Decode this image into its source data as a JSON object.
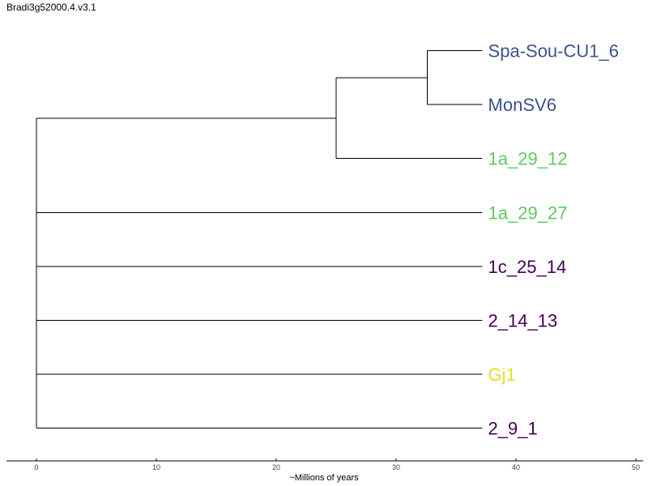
{
  "title": "Bradi3g52000.4.v3.1",
  "axis": {
    "label": "~Millions of years",
    "range": [
      0,
      50
    ],
    "ticks": [
      "0",
      "10",
      "20",
      "30",
      "40",
      "50"
    ]
  },
  "colors": {
    "blue": "#3b528b",
    "green": "#5ec962",
    "purple": "#440154",
    "yellow": "#e5e01e"
  },
  "leaves": [
    {
      "name": "Spa-Sou-CU1_6",
      "color": "#3b528b"
    },
    {
      "name": "MonSV6",
      "color": "#3b528b"
    },
    {
      "name": "1a_29_12",
      "color": "#5ec962"
    },
    {
      "name": "1a_29_27",
      "color": "#5ec962"
    },
    {
      "name": "1c_25_14",
      "color": "#440154"
    },
    {
      "name": "2_14_13",
      "color": "#440154"
    },
    {
      "name": "Gj1",
      "color": "#e5e01e"
    },
    {
      "name": "2_9_1",
      "color": "#440154"
    }
  ],
  "tree": {
    "root_age": 0,
    "tip_age": 37.2,
    "clades": [
      {
        "members": [
          0,
          1
        ],
        "age": 32.6
      },
      {
        "members": [
          0,
          1,
          2
        ],
        "age": 25
      }
    ]
  }
}
